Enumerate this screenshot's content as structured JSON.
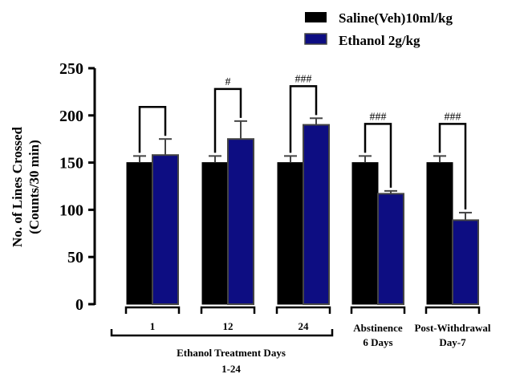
{
  "chart_data": {
    "type": "bar",
    "ylabel_line1": "No. of Lines Crossed",
    "ylabel_line2": "(Counts/30 min)",
    "ylim": [
      0,
      250
    ],
    "yticks": [
      "0",
      "50",
      "100",
      "150",
      "200",
      "250"
    ],
    "grid": false,
    "legend_position": "top-right",
    "series": [
      {
        "name": "Saline(Veh)10ml/kg",
        "color": "#000000",
        "values": [
          150,
          150,
          150,
          150,
          150
        ],
        "errors": [
          7,
          7,
          7,
          7,
          7
        ]
      },
      {
        "name": "Ethanol 2g/kg",
        "color": "#0d0d82",
        "values": [
          158,
          175,
          190,
          117,
          89
        ],
        "errors": [
          17,
          19,
          7,
          3,
          8
        ]
      }
    ],
    "categories": [
      "1",
      "12",
      "24",
      "Abstinence\n6 Days",
      "Post-Withdrawal\nDay-7"
    ],
    "category_lines": [
      [
        "1"
      ],
      [
        "12"
      ],
      [
        "24"
      ],
      [
        "Abstinence",
        "6 Days"
      ],
      [
        "Post-Withdrawal",
        "Day-7"
      ]
    ],
    "significance": [
      "",
      "#",
      "###",
      "###",
      "###"
    ],
    "group_label_line1": "Ethanol Treatment Days",
    "group_label_line2": "1-24"
  }
}
